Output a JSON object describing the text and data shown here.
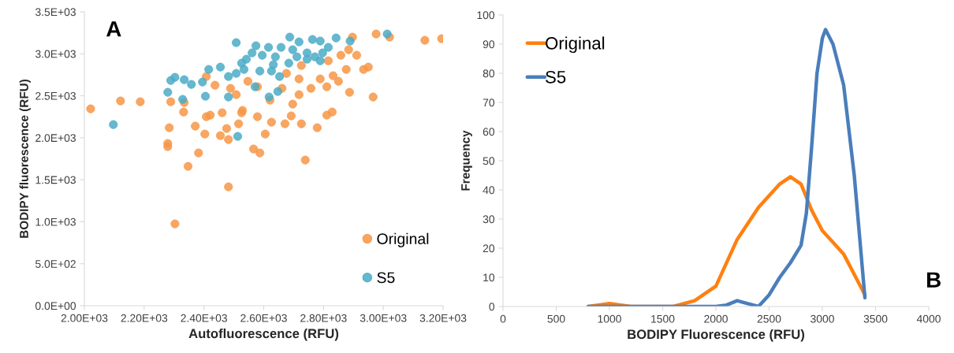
{
  "chart_data": [
    {
      "type": "scatter",
      "xlabel": "Autofluorescence (RFU)",
      "ylabel": "BODIPY fluorescence (RFU)",
      "annotations": [
        "A"
      ],
      "xlim": [
        2000,
        3200
      ],
      "xticks": [
        {
          "value": 2000,
          "label": "2.00E+03"
        },
        {
          "value": 2200,
          "label": "2.20E+03"
        },
        {
          "value": 2400,
          "label": "2.40E+03"
        },
        {
          "value": 2600,
          "label": "2.60E+03"
        },
        {
          "value": 2800,
          "label": "2.80E+03"
        },
        {
          "value": 3000,
          "label": "3.00E+03"
        },
        {
          "value": 3200,
          "label": "3.20E+03"
        }
      ],
      "ylim": [
        0,
        3500
      ],
      "yticks": [
        {
          "value": 0,
          "label": "0.0E+00"
        },
        {
          "value": 500,
          "label": "5.0E+02"
        },
        {
          "value": 1000,
          "label": "1.0E+03"
        },
        {
          "value": 1500,
          "label": "1.5E+03"
        },
        {
          "value": 2000,
          "label": "2.0E+03"
        },
        {
          "value": 2500,
          "label": "2.5E+03"
        },
        {
          "value": 3000,
          "label": "3.0E+03"
        },
        {
          "value": 3500,
          "label": "3.5E+03"
        }
      ],
      "grid": false,
      "legend": "bottom right",
      "marker": "circle",
      "series": [
        {
          "name": "Original",
          "color": "#f79646",
          "x": [
            2021,
            2121,
            2187,
            2289,
            2334,
            2332,
            2284,
            2279,
            2279,
            2382,
            2347,
            2482,
            2303,
            2371,
            2403,
            2408,
            2421,
            2461,
            2455,
            2482,
            2476,
            2408,
            2437,
            2508,
            2489,
            2516,
            2526,
            2897,
            2976,
            3021,
            3139,
            3195,
            2884,
            2911,
            2858,
            2876,
            2934,
            2950,
            2887,
            2966,
            2832,
            2850,
            2811,
            2829,
            2811,
            2779,
            2739,
            2726,
            2758,
            2718,
            2697,
            2671,
            2692,
            2626,
            2605,
            2566,
            2587,
            2579,
            2529,
            2621,
            2661,
            2718,
            2789,
            2726,
            2816,
            2676,
            2579,
            2547
          ],
          "values": [
            2345,
            2439,
            2429,
            2429,
            2420,
            2307,
            2120,
            1932,
            1895,
            1820,
            1660,
            1416,
            975,
            2139,
            2045,
            2251,
            2270,
            2298,
            2026,
            1979,
            2111,
            2730,
            2626,
            2514,
            2589,
            2167,
            2298,
            3199,
            3236,
            3199,
            3161,
            3180,
            3049,
            2983,
            2983,
            2814,
            2814,
            2842,
            2542,
            2486,
            2739,
            2673,
            2608,
            2307,
            2270,
            2120,
            1735,
            2167,
            2589,
            2514,
            2401,
            2167,
            2261,
            2186,
            2045,
            1867,
            1820,
            2251,
            2326,
            2448,
            2589,
            2701,
            2701,
            2861,
            2917,
            2767,
            2608,
            2673
          ]
        },
        {
          "name": "S5",
          "color": "#4bacc6",
          "x": [
            2508,
            2289,
            2303,
            2334,
            2358,
            2279,
            2329,
            2097,
            2416,
            2395,
            2405,
            2455,
            2482,
            2482,
            2513,
            2508,
            3013,
            2889,
            2842,
            2789,
            2763,
            2687,
            2718,
            2816,
            2797,
            2745,
            2697,
            2658,
            2616,
            2574,
            2561,
            2595,
            2542,
            2639,
            2711,
            2771,
            2745,
            2684,
            2632,
            2526,
            2534,
            2587,
            2626,
            2653,
            2789,
            2571,
            2647,
            2618
          ],
          "values": [
            3133,
            2683,
            2720,
            2692,
            2636,
            2542,
            2458,
            2157,
            2814,
            2664,
            2495,
            2842,
            2730,
            2486,
            2017,
            2767,
            3236,
            3152,
            3189,
            3152,
            3171,
            3199,
            3142,
            3077,
            3011,
            3011,
            3049,
            3077,
            3077,
            3096,
            3011,
            2983,
            2936,
            2964,
            2964,
            2964,
            2936,
            2889,
            2870,
            2889,
            2814,
            2795,
            2795,
            2730,
            2917,
            2608,
            2551,
            2486
          ]
        }
      ]
    },
    {
      "type": "line",
      "xlabel": "BODIPY Fluorescence (RFU)",
      "ylabel": "Frequency",
      "annotations": [
        "B"
      ],
      "xlim": [
        0,
        4000
      ],
      "xticks": [
        0,
        500,
        1000,
        1500,
        2000,
        2500,
        3000,
        3500,
        4000
      ],
      "ylim": [
        0,
        100
      ],
      "yticks": [
        0,
        10,
        20,
        30,
        40,
        50,
        60,
        70,
        80,
        90,
        100
      ],
      "grid": false,
      "legend": "top left",
      "marker": "none",
      "line_style": "solid",
      "series": [
        {
          "name": "Original",
          "color": "#ff8010",
          "x": [
            800,
            1000,
            1200,
            1400,
            1600,
            1800,
            2000,
            2200,
            2400,
            2600,
            2700,
            2800,
            2900,
            3000,
            3100,
            3200,
            3300,
            3400
          ],
          "values": [
            0,
            1,
            0,
            0,
            0,
            2,
            7,
            23,
            34,
            42,
            44.5,
            42,
            33,
            26,
            22,
            18,
            11,
            4
          ]
        },
        {
          "name": "S5",
          "color": "#4a7ebb",
          "x": [
            800,
            1000,
            1200,
            1400,
            1600,
            1800,
            2000,
            2100,
            2200,
            2300,
            2400,
            2500,
            2600,
            2700,
            2800,
            2850,
            2900,
            2950,
            3000,
            3030,
            3100,
            3200,
            3300,
            3400
          ],
          "values": [
            0,
            0,
            0,
            0,
            0,
            0,
            0,
            0.5,
            2,
            1,
            0,
            4,
            10,
            15,
            21,
            32,
            55,
            80,
            92,
            95,
            90,
            76,
            45,
            3
          ]
        }
      ]
    }
  ]
}
